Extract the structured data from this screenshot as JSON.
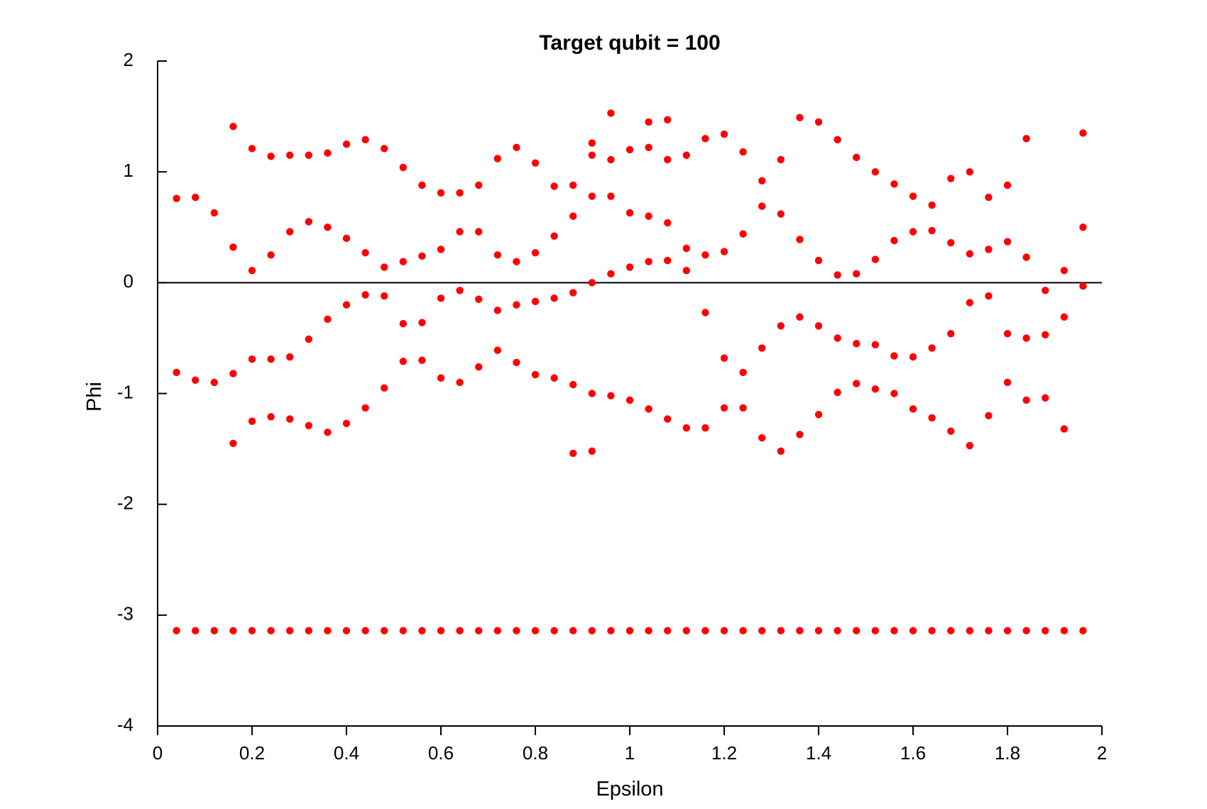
{
  "chart_data": {
    "type": "scatter",
    "title": "Target qubit = 100",
    "xlabel": "Epsilon",
    "ylabel": "Phi",
    "xlim": [
      0,
      2
    ],
    "ylim": [
      -4,
      2
    ],
    "xticks": [
      0,
      0.2,
      0.4,
      0.6,
      0.8,
      1,
      1.2,
      1.4,
      1.6,
      1.8,
      2
    ],
    "xtick_labels": [
      "0",
      "0.2",
      "0.4",
      "0.6",
      "0.8",
      "1",
      "1.2",
      "1.4",
      "1.6",
      "1.8",
      "2"
    ],
    "yticks": [
      -4,
      -3,
      -2,
      -1,
      0,
      1,
      2
    ],
    "ytick_labels": [
      "-4",
      "-3",
      "-2",
      "-1",
      "0",
      "1",
      "2"
    ],
    "zero_line": true,
    "grid": false,
    "legend": "none",
    "marker_color": "#ff0000",
    "axis_color": "#000000",
    "series": [
      {
        "points": [
          [
            0.04,
            0.76
          ],
          [
            0.04,
            -0.81
          ],
          [
            0.04,
            -3.14
          ],
          [
            0.08,
            0.77
          ],
          [
            0.08,
            -0.88
          ],
          [
            0.08,
            -3.14
          ],
          [
            0.12,
            0.63
          ],
          [
            0.12,
            -0.9
          ],
          [
            0.12,
            -3.14
          ],
          [
            0.16,
            1.41
          ],
          [
            0.16,
            0.32
          ],
          [
            0.16,
            -0.82
          ],
          [
            0.16,
            -1.45
          ],
          [
            0.16,
            -3.14
          ],
          [
            0.2,
            1.21
          ],
          [
            0.2,
            0.11
          ],
          [
            0.2,
            -0.69
          ],
          [
            0.2,
            -1.25
          ],
          [
            0.2,
            -3.14
          ],
          [
            0.24,
            1.14
          ],
          [
            0.24,
            0.25
          ],
          [
            0.24,
            -0.69
          ],
          [
            0.24,
            -1.21
          ],
          [
            0.24,
            -3.14
          ],
          [
            0.28,
            1.15
          ],
          [
            0.28,
            0.46
          ],
          [
            0.28,
            -0.67
          ],
          [
            0.28,
            -1.23
          ],
          [
            0.28,
            -3.14
          ],
          [
            0.32,
            1.15
          ],
          [
            0.32,
            0.55
          ],
          [
            0.32,
            -0.51
          ],
          [
            0.32,
            -1.29
          ],
          [
            0.32,
            -3.14
          ],
          [
            0.36,
            1.17
          ],
          [
            0.36,
            0.5
          ],
          [
            0.36,
            -0.33
          ],
          [
            0.36,
            -1.35
          ],
          [
            0.36,
            -3.14
          ],
          [
            0.4,
            1.25
          ],
          [
            0.4,
            0.4
          ],
          [
            0.4,
            -0.2
          ],
          [
            0.4,
            -1.27
          ],
          [
            0.4,
            -3.14
          ],
          [
            0.44,
            1.29
          ],
          [
            0.44,
            0.27
          ],
          [
            0.44,
            -0.11
          ],
          [
            0.44,
            -1.13
          ],
          [
            0.44,
            -3.14
          ],
          [
            0.48,
            1.21
          ],
          [
            0.48,
            0.14
          ],
          [
            0.48,
            -0.12
          ],
          [
            0.48,
            -0.95
          ],
          [
            0.48,
            -3.14
          ],
          [
            0.52,
            1.04
          ],
          [
            0.52,
            0.19
          ],
          [
            0.52,
            -0.37
          ],
          [
            0.52,
            -0.71
          ],
          [
            0.52,
            -3.14
          ],
          [
            0.56,
            0.88
          ],
          [
            0.56,
            0.24
          ],
          [
            0.56,
            -0.36
          ],
          [
            0.56,
            -0.7
          ],
          [
            0.56,
            -3.14
          ],
          [
            0.6,
            0.81
          ],
          [
            0.6,
            0.3
          ],
          [
            0.6,
            -0.14
          ],
          [
            0.6,
            -0.86
          ],
          [
            0.6,
            -3.14
          ],
          [
            0.64,
            0.81
          ],
          [
            0.64,
            0.46
          ],
          [
            0.64,
            -0.07
          ],
          [
            0.64,
            -0.9
          ],
          [
            0.64,
            -3.14
          ],
          [
            0.68,
            0.88
          ],
          [
            0.68,
            0.46
          ],
          [
            0.68,
            -0.15
          ],
          [
            0.68,
            -0.76
          ],
          [
            0.68,
            -3.14
          ],
          [
            0.72,
            1.12
          ],
          [
            0.72,
            0.25
          ],
          [
            0.72,
            -0.25
          ],
          [
            0.72,
            -0.61
          ],
          [
            0.72,
            -3.14
          ],
          [
            0.76,
            1.22
          ],
          [
            0.76,
            0.19
          ],
          [
            0.76,
            -0.2
          ],
          [
            0.76,
            -0.72
          ],
          [
            0.76,
            -3.14
          ],
          [
            0.8,
            1.08
          ],
          [
            0.8,
            0.27
          ],
          [
            0.8,
            -0.17
          ],
          [
            0.8,
            -0.83
          ],
          [
            0.8,
            -3.14
          ],
          [
            0.84,
            0.87
          ],
          [
            0.84,
            0.42
          ],
          [
            0.84,
            -0.14
          ],
          [
            0.84,
            -0.86
          ],
          [
            0.84,
            -3.14
          ],
          [
            0.88,
            0.88
          ],
          [
            0.88,
            0.6
          ],
          [
            0.88,
            -0.09
          ],
          [
            0.88,
            -0.92
          ],
          [
            0.88,
            -1.54
          ],
          [
            0.88,
            -3.14
          ],
          [
            0.92,
            1.26
          ],
          [
            0.92,
            1.15
          ],
          [
            0.92,
            0.78
          ],
          [
            0.92,
            0.0
          ],
          [
            0.92,
            -1.0
          ],
          [
            0.92,
            -1.52
          ],
          [
            0.92,
            -3.14
          ],
          [
            0.96,
            1.53
          ],
          [
            0.96,
            1.11
          ],
          [
            0.96,
            0.78
          ],
          [
            0.96,
            0.08
          ],
          [
            0.96,
            -1.02
          ],
          [
            0.96,
            -3.14
          ],
          [
            1.0,
            1.2
          ],
          [
            1.0,
            0.63
          ],
          [
            1.0,
            0.14
          ],
          [
            1.0,
            -1.06
          ],
          [
            1.0,
            -3.14
          ],
          [
            1.04,
            1.45
          ],
          [
            1.04,
            1.22
          ],
          [
            1.04,
            0.6
          ],
          [
            1.04,
            0.19
          ],
          [
            1.04,
            -1.14
          ],
          [
            1.04,
            -3.14
          ],
          [
            1.08,
            1.47
          ],
          [
            1.08,
            1.11
          ],
          [
            1.08,
            0.54
          ],
          [
            1.08,
            0.2
          ],
          [
            1.08,
            -1.23
          ],
          [
            1.08,
            -3.14
          ],
          [
            1.12,
            1.15
          ],
          [
            1.12,
            0.31
          ],
          [
            1.12,
            0.11
          ],
          [
            1.12,
            -1.31
          ],
          [
            1.12,
            -3.14
          ],
          [
            1.16,
            1.3
          ],
          [
            1.16,
            0.25
          ],
          [
            1.16,
            -0.27
          ],
          [
            1.16,
            -1.31
          ],
          [
            1.16,
            -3.14
          ],
          [
            1.2,
            1.34
          ],
          [
            1.2,
            0.28
          ],
          [
            1.2,
            -0.68
          ],
          [
            1.2,
            -1.13
          ],
          [
            1.2,
            -3.14
          ],
          [
            1.24,
            1.18
          ],
          [
            1.24,
            0.44
          ],
          [
            1.24,
            -0.81
          ],
          [
            1.24,
            -1.13
          ],
          [
            1.24,
            -3.14
          ],
          [
            1.28,
            0.92
          ],
          [
            1.28,
            0.69
          ],
          [
            1.28,
            -0.59
          ],
          [
            1.28,
            -1.4
          ],
          [
            1.28,
            -3.14
          ],
          [
            1.32,
            1.11
          ],
          [
            1.32,
            0.62
          ],
          [
            1.32,
            -0.39
          ],
          [
            1.32,
            -1.52
          ],
          [
            1.32,
            -3.14
          ],
          [
            1.36,
            1.49
          ],
          [
            1.36,
            0.39
          ],
          [
            1.36,
            -0.31
          ],
          [
            1.36,
            -1.37
          ],
          [
            1.36,
            -3.14
          ],
          [
            1.4,
            1.45
          ],
          [
            1.4,
            0.2
          ],
          [
            1.4,
            -0.39
          ],
          [
            1.4,
            -1.19
          ],
          [
            1.4,
            -3.14
          ],
          [
            1.44,
            1.29
          ],
          [
            1.44,
            0.07
          ],
          [
            1.44,
            -0.5
          ],
          [
            1.44,
            -0.99
          ],
          [
            1.44,
            -3.14
          ],
          [
            1.48,
            1.13
          ],
          [
            1.48,
            0.08
          ],
          [
            1.48,
            -0.55
          ],
          [
            1.48,
            -0.91
          ],
          [
            1.48,
            -3.14
          ],
          [
            1.52,
            1.0
          ],
          [
            1.52,
            0.21
          ],
          [
            1.52,
            -0.56
          ],
          [
            1.52,
            -0.96
          ],
          [
            1.52,
            -3.14
          ],
          [
            1.56,
            0.89
          ],
          [
            1.56,
            0.38
          ],
          [
            1.56,
            -0.66
          ],
          [
            1.56,
            -1.0
          ],
          [
            1.56,
            -3.14
          ],
          [
            1.6,
            0.78
          ],
          [
            1.6,
            0.46
          ],
          [
            1.6,
            -0.67
          ],
          [
            1.6,
            -1.14
          ],
          [
            1.6,
            -3.14
          ],
          [
            1.64,
            0.7
          ],
          [
            1.64,
            0.47
          ],
          [
            1.64,
            -0.59
          ],
          [
            1.64,
            -1.22
          ],
          [
            1.64,
            -3.14
          ],
          [
            1.68,
            0.94
          ],
          [
            1.68,
            0.36
          ],
          [
            1.68,
            -0.46
          ],
          [
            1.68,
            -1.34
          ],
          [
            1.68,
            -3.14
          ],
          [
            1.72,
            1.0
          ],
          [
            1.72,
            0.26
          ],
          [
            1.72,
            -0.18
          ],
          [
            1.72,
            -1.47
          ],
          [
            1.72,
            -3.14
          ],
          [
            1.76,
            0.77
          ],
          [
            1.76,
            0.3
          ],
          [
            1.76,
            -0.12
          ],
          [
            1.76,
            -1.2
          ],
          [
            1.76,
            -3.14
          ],
          [
            1.8,
            0.88
          ],
          [
            1.8,
            0.37
          ],
          [
            1.8,
            -0.46
          ],
          [
            1.8,
            -0.9
          ],
          [
            1.8,
            -3.14
          ],
          [
            1.84,
            1.3
          ],
          [
            1.84,
            0.23
          ],
          [
            1.84,
            -0.5
          ],
          [
            1.84,
            -1.06
          ],
          [
            1.84,
            -3.14
          ],
          [
            1.88,
            -0.07
          ],
          [
            1.88,
            -0.47
          ],
          [
            1.88,
            -1.04
          ],
          [
            1.88,
            -3.14
          ],
          [
            1.92,
            0.11
          ],
          [
            1.92,
            -0.31
          ],
          [
            1.92,
            -1.32
          ],
          [
            1.92,
            -3.14
          ],
          [
            1.96,
            1.35
          ],
          [
            1.96,
            0.5
          ],
          [
            1.96,
            -0.03
          ],
          [
            1.96,
            -3.14
          ]
        ]
      }
    ]
  }
}
